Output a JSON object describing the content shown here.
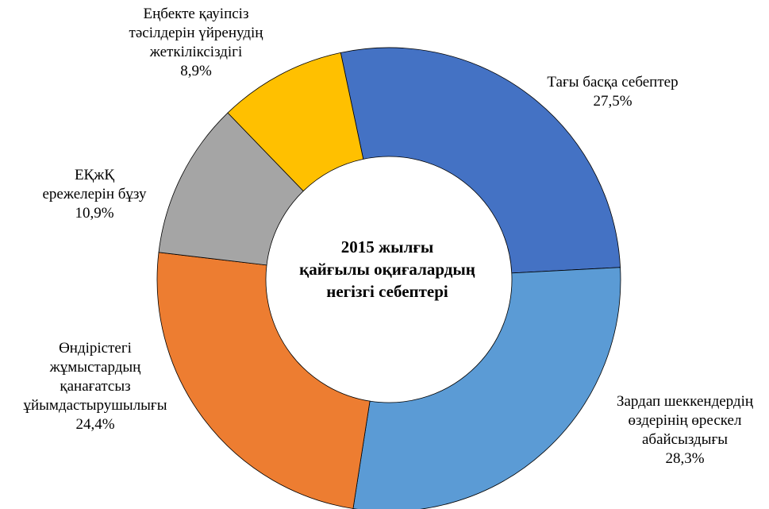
{
  "chart_data": {
    "type": "pie",
    "style": "donut",
    "title_lines": [
      "2015 жылғы",
      "қайғылы оқиғалардың",
      "негізгі себептері"
    ],
    "slices": [
      {
        "label_lines": [
          "Тағы басқа себептер"
        ],
        "value": 27.5,
        "value_label": "27,5%",
        "color": "#4472C4"
      },
      {
        "label_lines": [
          "Зардап шеккендердің",
          "өздерінің өрескел",
          "абайсыздығы"
        ],
        "value": 28.3,
        "value_label": "28,3%",
        "color": "#5B9BD5"
      },
      {
        "label_lines": [
          "Өндірістегі",
          "жұмыстардың",
          "қанағатсыз",
          "ұйымдастырушылығы"
        ],
        "value": 24.4,
        "value_label": "24,4%",
        "color": "#ED7D31"
      },
      {
        "label_lines": [
          "ЕҚжҚ",
          "ережелерін бұзу"
        ],
        "value": 10.9,
        "value_label": "10,9%",
        "color": "#A5A5A5"
      },
      {
        "label_lines": [
          "Еңбекте қауіпсіз",
          "тәсілдерін үйренудің",
          "жеткіліксіздігі"
        ],
        "value": 8.9,
        "value_label": "8,9%",
        "color": "#FFC000"
      }
    ]
  }
}
